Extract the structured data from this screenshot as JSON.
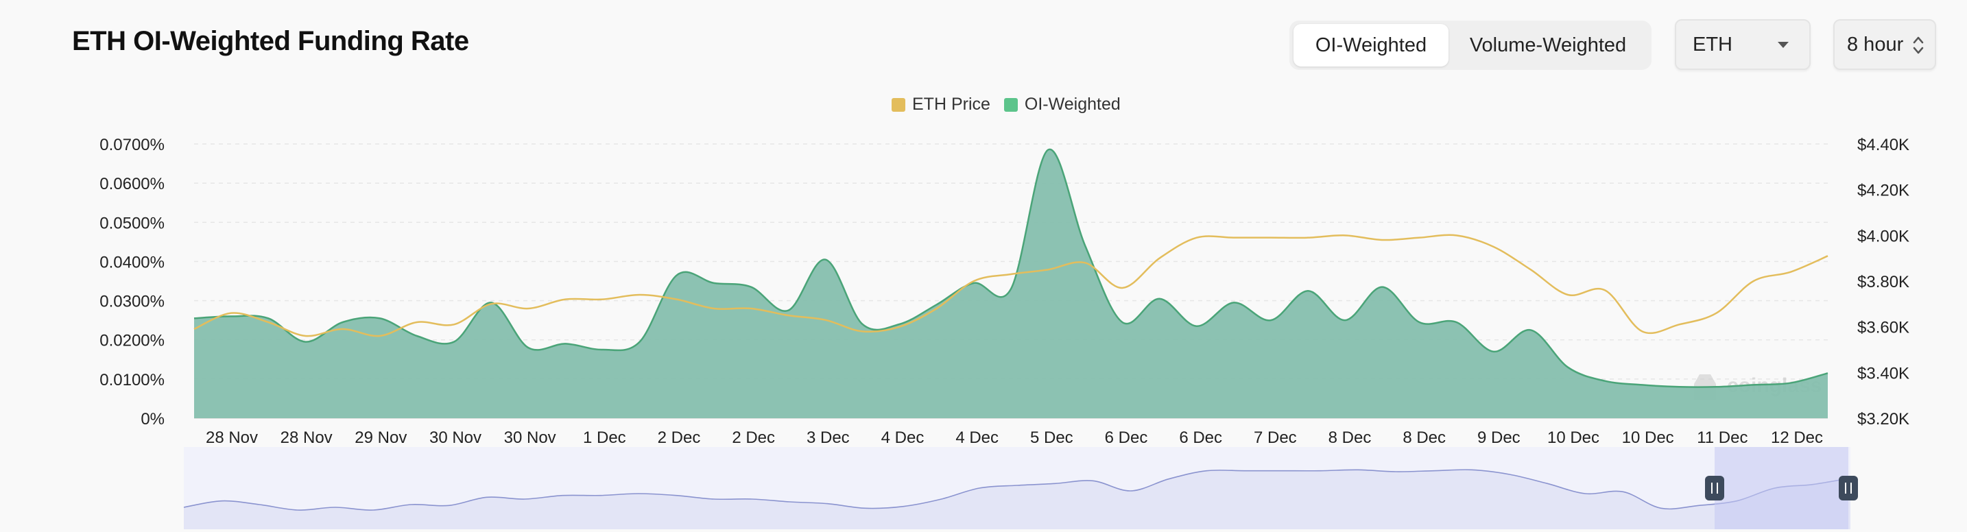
{
  "page": {
    "title": "ETH OI-Weighted Funding Rate"
  },
  "controls": {
    "tabs": [
      {
        "label": "OI-Weighted",
        "active": true
      },
      {
        "label": "Volume-Weighted",
        "active": false
      }
    ],
    "asset_select": {
      "value": "ETH",
      "icon": "chevron-down-icon"
    },
    "interval_select": {
      "value": "8 hour",
      "icon": "up-down-icon"
    }
  },
  "legend": [
    {
      "label": "ETH Price",
      "color": "#e3bd5c"
    },
    {
      "label": "OI-Weighted",
      "color": "#5cc48b"
    }
  ],
  "watermark": "coinglass",
  "chart_data": {
    "type": "area",
    "title": "",
    "x_tick_labels": [
      "28 Nov",
      "28 Nov",
      "29 Nov",
      "30 Nov",
      "30 Nov",
      "1 Dec",
      "2 Dec",
      "2 Dec",
      "3 Dec",
      "4 Dec",
      "4 Dec",
      "5 Dec",
      "6 Dec",
      "6 Dec",
      "7 Dec",
      "8 Dec",
      "8 Dec",
      "9 Dec",
      "10 Dec",
      "10 Dec",
      "11 Dec",
      "12 Dec"
    ],
    "y_left": {
      "ticks": [
        "0%",
        "0.0100%",
        "0.0200%",
        "0.0300%",
        "0.0400%",
        "0.0500%",
        "0.0600%",
        "0.0700%"
      ],
      "range": [
        0,
        0.07
      ],
      "unit": "%"
    },
    "y_right": {
      "ticks": [
        "$3.20K",
        "$3.40K",
        "$3.60K",
        "$3.80K",
        "$4.00K",
        "$4.20K",
        "$4.40K"
      ],
      "range": [
        3200,
        4400
      ],
      "unit": "USD"
    },
    "grid": true,
    "legend_position": "top-center",
    "series": [
      {
        "name": "OI-Weighted",
        "axis": "left",
        "type": "area",
        "color": "#5cc48b",
        "fill": "#86bfae",
        "x": [
          0,
          0.5,
          1,
          1.5,
          2,
          2.5,
          3,
          3.5,
          4,
          4.5,
          5,
          5.5,
          6,
          6.5,
          7,
          7.5,
          8,
          8.5,
          9,
          9.5,
          10,
          10.5,
          11,
          11.5,
          12,
          12.5,
          13,
          13.5,
          14,
          14.5,
          15,
          15.5,
          16,
          16.5,
          17,
          17.5,
          18,
          18.5,
          19,
          19.5,
          20,
          20.5,
          21,
          21.5,
          22
        ],
        "values": [
          0.0255,
          0.026,
          0.0255,
          0.0195,
          0.0245,
          0.0255,
          0.021,
          0.0195,
          0.0295,
          0.018,
          0.019,
          0.0175,
          0.0195,
          0.0365,
          0.0345,
          0.0335,
          0.0275,
          0.0405,
          0.024,
          0.024,
          0.029,
          0.0345,
          0.033,
          0.0685,
          0.044,
          0.0245,
          0.0305,
          0.0235,
          0.0295,
          0.025,
          0.0325,
          0.025,
          0.0335,
          0.0245,
          0.0245,
          0.017,
          0.0225,
          0.013,
          0.0095,
          0.0085,
          0.008,
          0.008,
          0.0085,
          0.009,
          0.0115
        ]
      },
      {
        "name": "ETH Price",
        "axis": "right",
        "type": "line",
        "color": "#e3bd5c",
        "x": [
          0,
          0.5,
          1,
          1.5,
          2,
          2.5,
          3,
          3.5,
          4,
          4.5,
          5,
          5.5,
          6,
          6.5,
          7,
          7.5,
          8,
          8.5,
          9,
          9.5,
          10,
          10.5,
          11,
          11.5,
          12,
          12.5,
          13,
          13.5,
          14,
          14.5,
          15,
          15.5,
          16,
          16.5,
          17,
          17.5,
          18,
          18.5,
          19,
          19.5,
          20,
          20.5,
          21,
          21.5,
          22
        ],
        "values": [
          3590,
          3660,
          3620,
          3560,
          3590,
          3560,
          3620,
          3610,
          3700,
          3680,
          3720,
          3720,
          3740,
          3720,
          3680,
          3680,
          3650,
          3630,
          3580,
          3600,
          3680,
          3800,
          3830,
          3850,
          3880,
          3770,
          3900,
          3990,
          3990,
          3990,
          3990,
          4000,
          3980,
          3990,
          4000,
          3950,
          3850,
          3740,
          3760,
          3580,
          3610,
          3660,
          3800,
          3840,
          3910
        ]
      }
    ]
  },
  "navigator": {
    "handle_left_icon": "pause-grip-icon",
    "handle_right_icon": "pause-grip-icon"
  }
}
